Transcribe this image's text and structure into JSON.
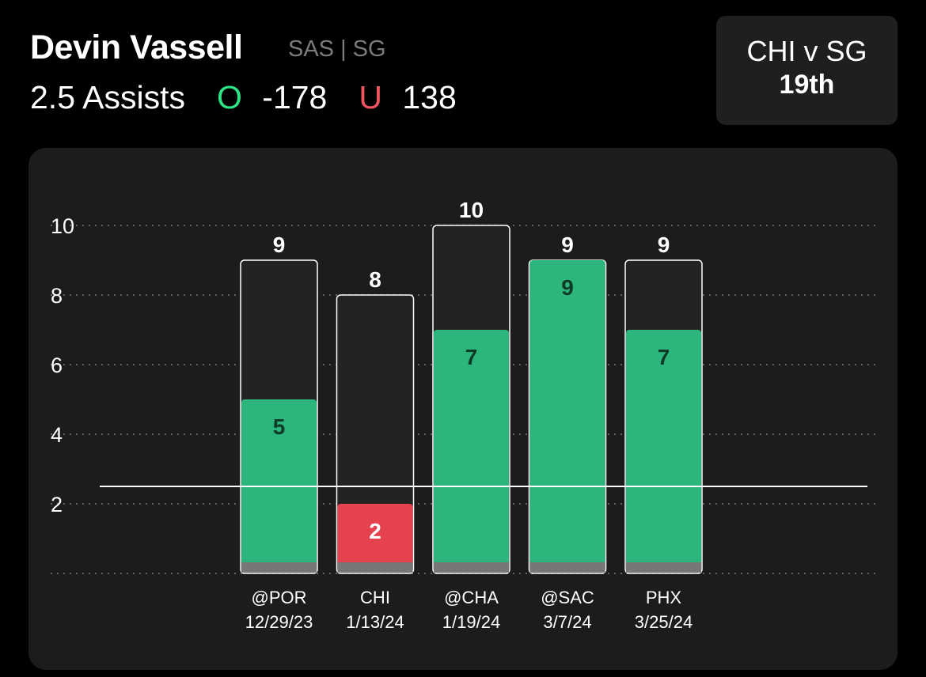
{
  "header": {
    "player_name": "Devin Vassell",
    "team_position": "SAS | SG",
    "prop": "2.5 Assists",
    "over": {
      "key": "O",
      "odds": "-178",
      "color": "#2ee586"
    },
    "under": {
      "key": "U",
      "odds": "138",
      "color": "#f0545e"
    }
  },
  "matchup": {
    "title": "CHI v SG",
    "rank": "19th"
  },
  "chart_data": {
    "type": "bar",
    "title": "",
    "xlabel": "",
    "ylabel": "",
    "ylim": [
      0,
      10
    ],
    "yticks": [
      2,
      4,
      6,
      8,
      10
    ],
    "grid": true,
    "threshold": 2.5,
    "categories": [
      "@POR",
      "CHI",
      "@CHA",
      "@SAC",
      "PHX"
    ],
    "dates": [
      "12/29/23",
      "1/13/24",
      "1/19/24",
      "3/7/24",
      "3/25/24"
    ],
    "series": [
      {
        "values": [
          5,
          2,
          7,
          9,
          7
        ]
      },
      {
        "values": [
          9,
          8,
          10,
          9,
          9
        ]
      }
    ],
    "colors": {
      "over": "#2db67c",
      "under": "#e5414f",
      "total_outline": "#ffffff",
      "baseline_band": "#777777"
    }
  }
}
